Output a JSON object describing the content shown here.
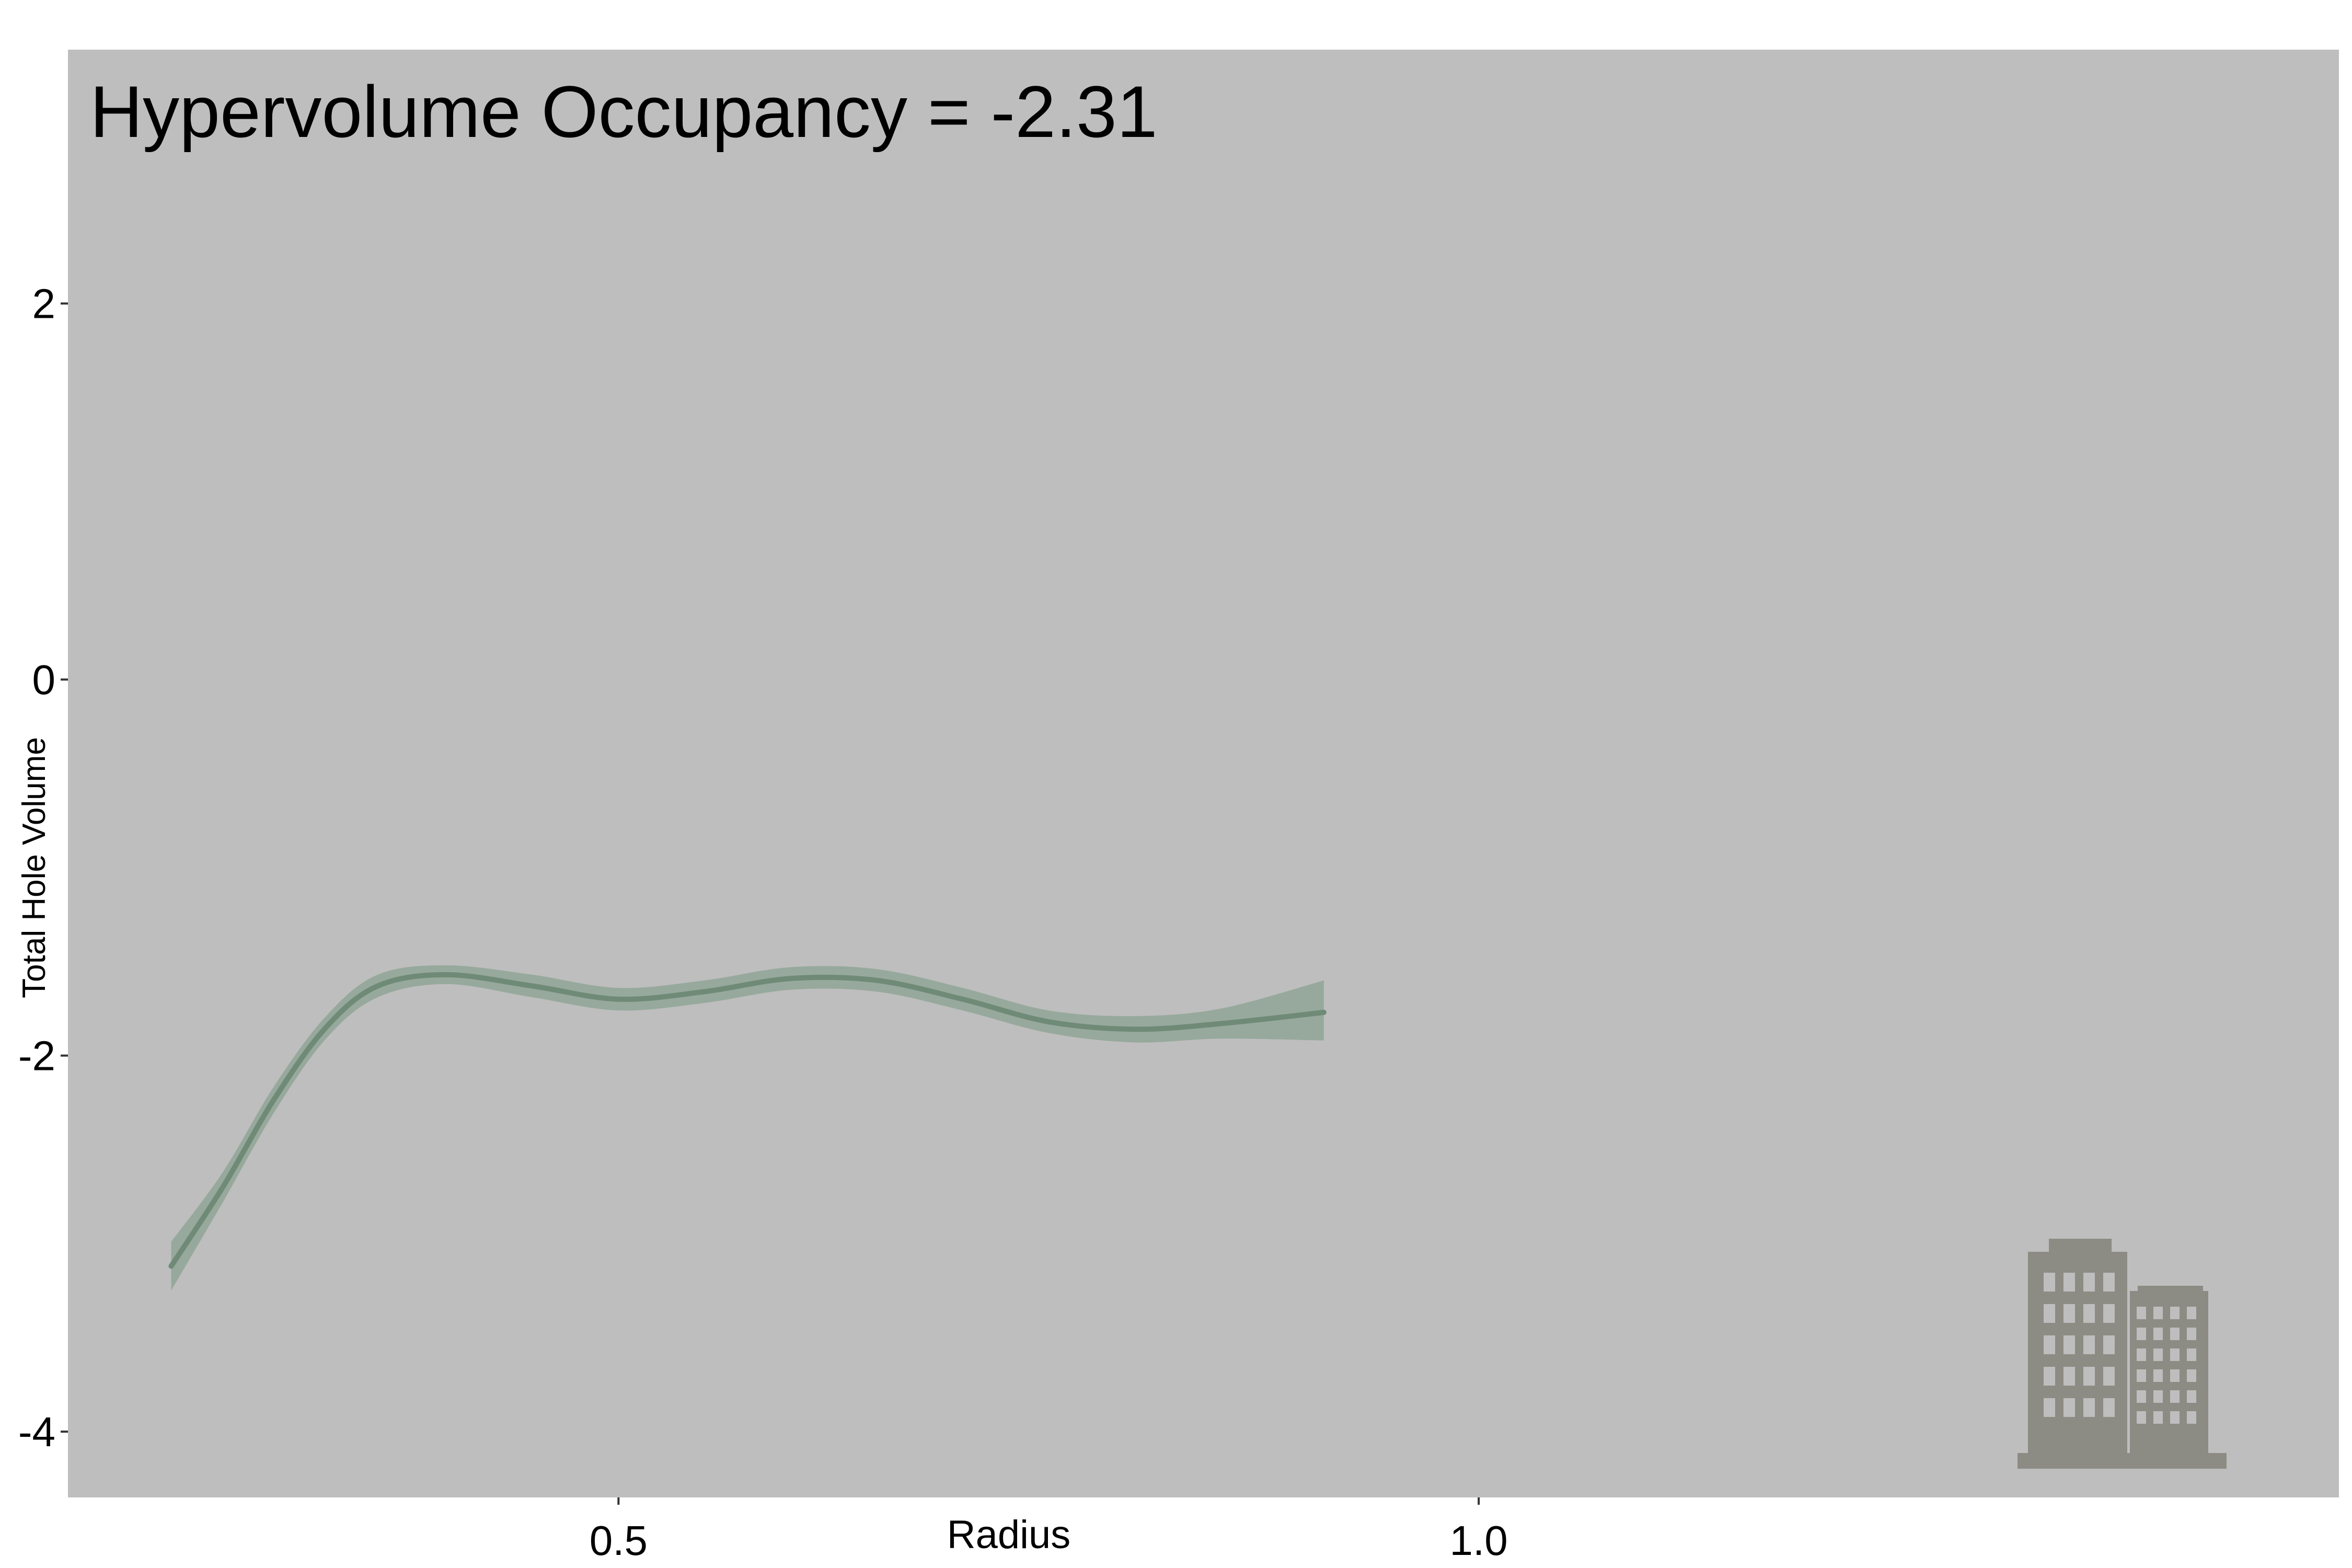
{
  "chart_data": {
    "type": "line",
    "title": "Hypervolume Occupancy =  -2.31",
    "xlabel": "Radius",
    "ylabel": "Total Hole Volume",
    "xlim": [
      0.18,
      1.5
    ],
    "ylim": [
      -4.35,
      3.35
    ],
    "x_ticks": [
      {
        "value": 0.5,
        "label": "0.5"
      },
      {
        "value": 1.0,
        "label": "1.0"
      }
    ],
    "y_ticks": [
      {
        "value": 2,
        "label": "2"
      },
      {
        "value": 0,
        "label": "0"
      },
      {
        "value": -2,
        "label": "-2"
      },
      {
        "value": -4,
        "label": "-4"
      }
    ],
    "grid": false,
    "legend": "none",
    "series": [
      {
        "x": [
          0.24,
          0.27,
          0.3,
          0.33,
          0.36,
          0.4,
          0.45,
          0.5,
          0.55,
          0.6,
          0.65,
          0.7,
          0.75,
          0.8,
          0.85,
          0.91
        ],
        "y": [
          -3.12,
          -2.7,
          -2.23,
          -1.85,
          -1.63,
          -1.57,
          -1.63,
          -1.7,
          -1.66,
          -1.59,
          -1.6,
          -1.7,
          -1.82,
          -1.86,
          -1.83,
          -1.77
        ],
        "lower": [
          -3.25,
          -2.78,
          -2.3,
          -1.91,
          -1.69,
          -1.62,
          -1.69,
          -1.76,
          -1.72,
          -1.65,
          -1.66,
          -1.76,
          -1.88,
          -1.93,
          -1.91,
          -1.92
        ],
        "upper": [
          -2.99,
          -2.62,
          -2.16,
          -1.79,
          -1.57,
          -1.52,
          -1.57,
          -1.64,
          -1.6,
          -1.53,
          -1.54,
          -1.64,
          -1.76,
          -1.79,
          -1.75,
          -1.6
        ]
      }
    ]
  },
  "colors": {
    "panel_background": "#bebebe",
    "line": "#6f8a76",
    "ribbon": "#91a696",
    "building_icon": "#8c8c84",
    "building_windows": "#bebebe"
  },
  "icons": {
    "corner_icon": "building-icon"
  }
}
